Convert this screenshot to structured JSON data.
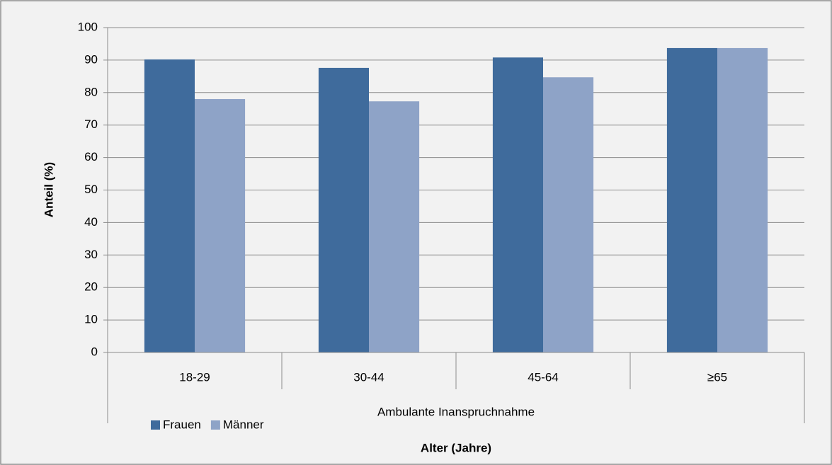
{
  "chart_data": {
    "type": "bar",
    "xlabel": "Alter (Jahre)",
    "ylabel": "Anteil (%)",
    "category_group": "Ambulante Inanspruchnahme",
    "categories": [
      "18-29",
      "30-44",
      "45-64",
      "≥65"
    ],
    "series": [
      {
        "name": "Frauen",
        "color": "#3f6b9c",
        "values": [
          90.2,
          87.6,
          90.8,
          93.7
        ]
      },
      {
        "name": "Männer",
        "color": "#8ea3c7",
        "values": [
          78.0,
          77.3,
          84.7,
          93.7
        ]
      }
    ],
    "ylim": [
      0,
      100
    ],
    "yticks": [
      0,
      10,
      20,
      30,
      40,
      50,
      60,
      70,
      80,
      90,
      100
    ],
    "grid": true,
    "legend": "bottom-left"
  }
}
